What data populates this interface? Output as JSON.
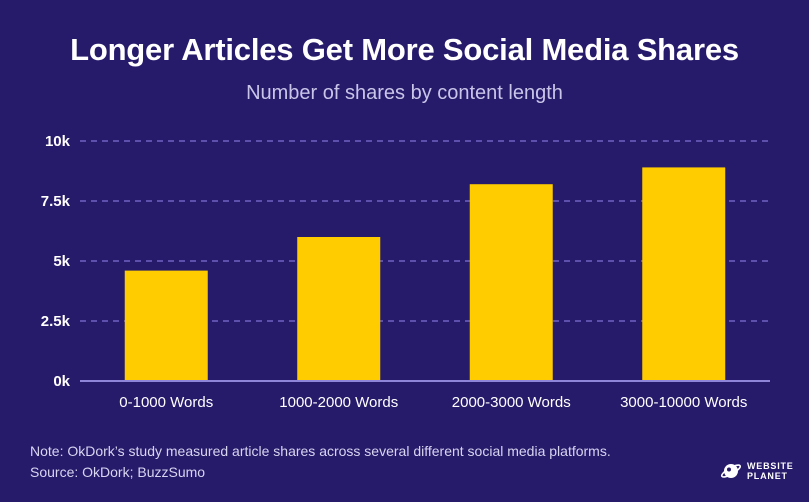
{
  "chart_data": {
    "type": "bar",
    "title": "Longer Articles Get More Social Media Shares",
    "subtitle": "Number of shares by content length",
    "categories": [
      "0-1000 Words",
      "1000-2000 Words",
      "2000-3000 Words",
      "3000-10000 Words"
    ],
    "values": [
      4600,
      6000,
      8200,
      8900
    ],
    "ylim": [
      0,
      10000
    ],
    "yticks": [
      0,
      2500,
      5000,
      7500,
      10000
    ],
    "ytick_labels": [
      "0k",
      "2.5k",
      "5k",
      "7.5k",
      "10k"
    ],
    "xlabel": "",
    "ylabel": "",
    "grid": true,
    "bar_color": "#ffcc00",
    "grid_color": "#6f63c2",
    "axis_color": "#8e85d8"
  },
  "footer": {
    "note": "Note: OkDork’s study measured article shares across several different social media platforms.",
    "source": "Source: OkDork; BuzzSumo"
  },
  "logo": {
    "line1": "WEBSITE",
    "line2": "PLANET",
    "icon": "planet-icon"
  },
  "colors": {
    "background": "#261a6b"
  }
}
